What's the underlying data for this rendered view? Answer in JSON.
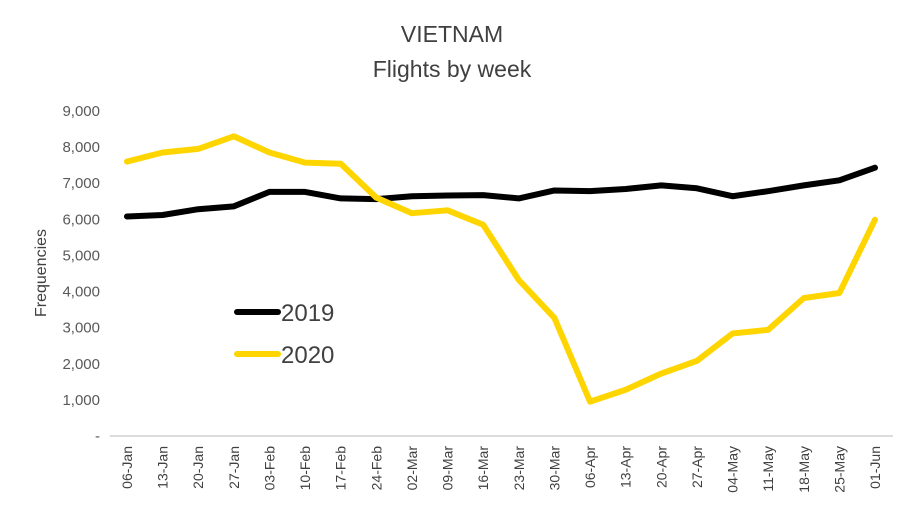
{
  "chart_data": {
    "type": "line",
    "title": "VIETNAM",
    "subtitle": "Flights by week",
    "xlabel": "",
    "ylabel": "Frequencies",
    "ylim": [
      0,
      9000
    ],
    "yticks": [
      0,
      1000,
      2000,
      3000,
      4000,
      5000,
      6000,
      7000,
      8000,
      9000
    ],
    "ytick_labels": [
      "-",
      "1,000",
      "2,000",
      "3,000",
      "4,000",
      "5,000",
      "6,000",
      "7,000",
      "8,000",
      "9,000"
    ],
    "grid": false,
    "legend_position": "center-left",
    "categories": [
      "06-Jan",
      "13-Jan",
      "20-Jan",
      "27-Jan",
      "03-Feb",
      "10-Feb",
      "17-Feb",
      "24-Feb",
      "02-Mar",
      "09-Mar",
      "16-Mar",
      "23-Mar",
      "30-Mar",
      "06-Apr",
      "13-Apr",
      "20-Apr",
      "27-Apr",
      "04-May",
      "11-May",
      "18-May",
      "25-May",
      "01-Jun"
    ],
    "series": [
      {
        "name": "2019",
        "color": "#000000",
        "values": [
          6080,
          6120,
          6280,
          6360,
          6760,
          6760,
          6580,
          6560,
          6640,
          6660,
          6670,
          6580,
          6800,
          6780,
          6840,
          6940,
          6860,
          6640,
          6780,
          6940,
          7080,
          7430
        ]
      },
      {
        "name": "2020",
        "color": "#FFD500",
        "values": [
          7600,
          7850,
          7950,
          8300,
          7850,
          7570,
          7540,
          6600,
          6170,
          6250,
          5850,
          4320,
          3270,
          950,
          1280,
          1730,
          2080,
          2840,
          2940,
          3820,
          3960,
          5990
        ]
      }
    ]
  }
}
